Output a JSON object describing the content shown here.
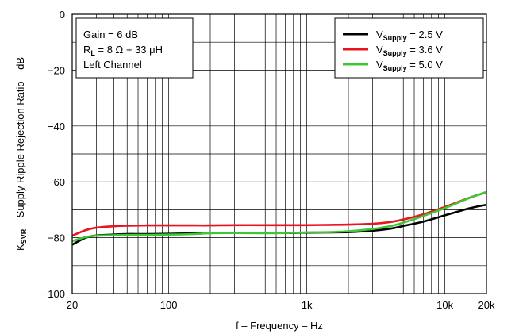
{
  "chart_data": {
    "type": "line",
    "xlabel": "f – Frequency – Hz",
    "ylabel": {
      "pre": "K",
      "sub": "SVR",
      "post": " – Supply Ripple Rejection Ratio – dB"
    },
    "x_scale": "log",
    "xlim": [
      20,
      20000
    ],
    "ylim": [
      -100,
      0
    ],
    "grid": true,
    "legend_position": "top-right",
    "x_ticks": [
      {
        "value": 20,
        "label": "20"
      },
      {
        "value": 100,
        "label": "100"
      },
      {
        "value": 1000,
        "label": "1k"
      },
      {
        "value": 10000,
        "label": "10k"
      },
      {
        "value": 20000,
        "label": "20k"
      }
    ],
    "y_ticks": [
      {
        "value": 0,
        "label": "0"
      },
      {
        "value": -20,
        "label": "−20"
      },
      {
        "value": -40,
        "label": "−40"
      },
      {
        "value": -60,
        "label": "−60"
      },
      {
        "value": -80,
        "label": "−80"
      },
      {
        "value": -100,
        "label": "−100"
      }
    ],
    "annotation": {
      "line1": "Gain = 6 dB",
      "line2": {
        "pre": "R",
        "sub": "L",
        "post": " = 8 Ω + 33 μH"
      },
      "line3": "Left Channel"
    },
    "series": [
      {
        "legend": {
          "pre": "V",
          "sub": "Supply",
          "post": " = 2.5 V"
        },
        "color": "#000000",
        "x": [
          20,
          25,
          30,
          40,
          50,
          70,
          100,
          150,
          200,
          300,
          500,
          700,
          1000,
          1500,
          2000,
          3000,
          4000,
          5000,
          7000,
          10000,
          15000,
          20000
        ],
        "y": [
          -82.5,
          -80.0,
          -79.2,
          -78.9,
          -78.7,
          -78.7,
          -78.6,
          -78.4,
          -78.3,
          -78.2,
          -78.3,
          -78.3,
          -78.2,
          -78.1,
          -78.0,
          -77.5,
          -76.8,
          -75.8,
          -74.2,
          -72.0,
          -69.5,
          -68.2
        ]
      },
      {
        "legend": {
          "pre": "V",
          "sub": "Supply",
          "post": " = 3.6 V"
        },
        "color": "#e8141e",
        "x": [
          20,
          25,
          30,
          40,
          50,
          70,
          100,
          150,
          200,
          300,
          500,
          700,
          1000,
          1500,
          2000,
          3000,
          4000,
          5000,
          7000,
          10000,
          15000,
          20000
        ],
        "y": [
          -79.3,
          -77.3,
          -76.4,
          -75.9,
          -75.7,
          -75.6,
          -75.6,
          -75.6,
          -75.6,
          -75.5,
          -75.5,
          -75.5,
          -75.5,
          -75.4,
          -75.3,
          -75.0,
          -74.4,
          -73.5,
          -71.6,
          -69.0,
          -65.7,
          -63.8
        ]
      },
      {
        "legend": {
          "pre": "V",
          "sub": "Supply",
          "post": " = 5.0 V"
        },
        "color": "#3cc832",
        "x": [
          20,
          25,
          30,
          40,
          50,
          70,
          100,
          150,
          200,
          300,
          500,
          700,
          1000,
          1500,
          2000,
          3000,
          4000,
          5000,
          7000,
          10000,
          15000,
          20000
        ],
        "y": [
          -81.2,
          -79.8,
          -79.3,
          -79.1,
          -79.0,
          -79.0,
          -78.9,
          -78.7,
          -78.4,
          -78.3,
          -78.4,
          -78.3,
          -78.1,
          -78.0,
          -77.7,
          -76.9,
          -75.9,
          -74.6,
          -72.2,
          -69.4,
          -65.8,
          -63.6
        ]
      }
    ]
  }
}
